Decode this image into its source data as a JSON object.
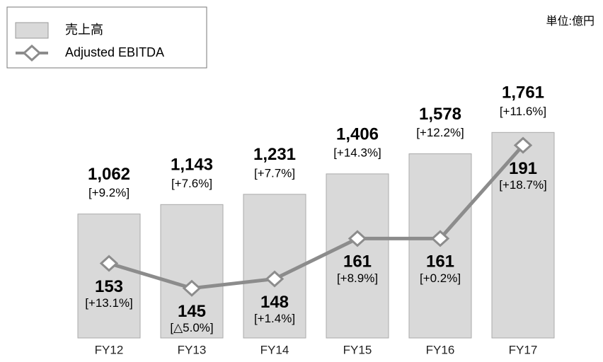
{
  "chart_data": {
    "type": "bar",
    "unit": "単位:億円",
    "categories": [
      "FY12",
      "FY13",
      "FY14",
      "FY15",
      "FY16",
      "FY17"
    ],
    "series": [
      {
        "name": "売上高",
        "type": "bar",
        "color": "#d9d9d9",
        "values": [
          1062,
          1143,
          1231,
          1406,
          1578,
          1761
        ],
        "value_labels": [
          "1,062",
          "1,143",
          "1,231",
          "1,406",
          "1,578",
          "1,761"
        ],
        "growth_labels": [
          "[+9.2%]",
          "[+7.6%]",
          "[+7.7%]",
          "[+14.3%]",
          "[+12.2%]",
          "[+11.6%]"
        ]
      },
      {
        "name": "Adjusted EBITDA",
        "type": "line",
        "axis": "y2",
        "color": "#8c8c8c",
        "values": [
          153,
          145,
          148,
          161,
          161,
          191
        ],
        "growth_labels": [
          "[+13.1%]",
          "[△5.0%]",
          "[+1.4%]",
          "[+8.9%]",
          "[+0.2%]",
          "[+18.7%]"
        ]
      }
    ],
    "ylim": [
      0,
      2290
    ],
    "y2lim": [
      129,
      215
    ]
  }
}
